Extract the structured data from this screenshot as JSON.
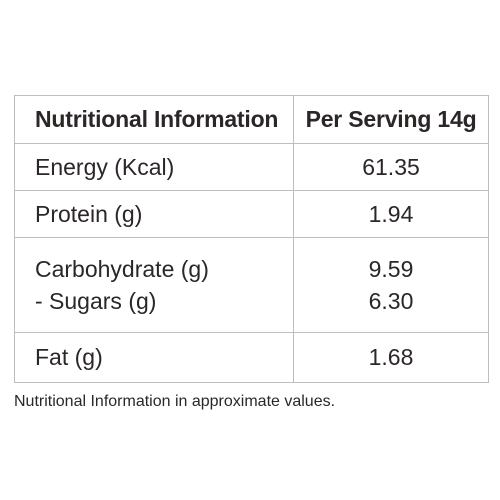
{
  "table": {
    "header": {
      "label": "Nutritional Information",
      "serving": "Per Serving 14g"
    },
    "rows": [
      {
        "label": "Energy (Kcal)",
        "value": "61.35"
      },
      {
        "label": "Protein (g)",
        "value": "1.94"
      },
      {
        "label": "Carbohydrate (g)",
        "value": "9.59",
        "sub_label": "- Sugars (g)",
        "sub_value": "6.30"
      },
      {
        "label": "Fat (g)",
        "value": "1.68"
      }
    ]
  },
  "footnote": "Nutritional Information in approximate values."
}
